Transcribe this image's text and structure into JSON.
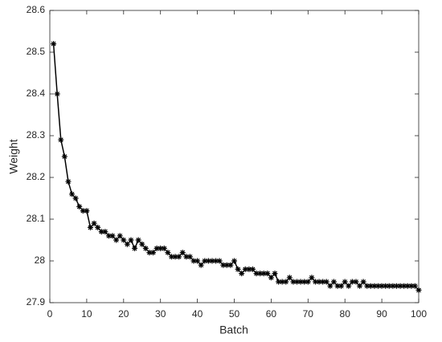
{
  "chart_data": {
    "type": "line",
    "x_label": "Batch",
    "y_label": "Weight",
    "x": [
      1,
      2,
      3,
      4,
      5,
      6,
      7,
      8,
      9,
      10,
      11,
      12,
      13,
      14,
      15,
      16,
      17,
      18,
      19,
      20,
      21,
      22,
      23,
      24,
      25,
      26,
      27,
      28,
      29,
      30,
      31,
      32,
      33,
      34,
      35,
      36,
      37,
      38,
      39,
      40,
      41,
      42,
      43,
      44,
      45,
      46,
      47,
      48,
      49,
      50,
      51,
      52,
      53,
      54,
      55,
      56,
      57,
      58,
      59,
      60,
      61,
      62,
      63,
      64,
      65,
      66,
      67,
      68,
      69,
      70,
      71,
      72,
      73,
      74,
      75,
      76,
      77,
      78,
      79,
      80,
      81,
      82,
      83,
      84,
      85,
      86,
      87,
      88,
      89,
      90,
      91,
      92,
      93,
      94,
      95,
      96,
      97,
      98,
      99,
      100
    ],
    "series": [
      {
        "color": "#000000",
        "values": [
          28.52,
          28.4,
          28.29,
          28.25,
          28.19,
          28.16,
          28.15,
          28.13,
          28.12,
          28.12,
          28.08,
          28.09,
          28.08,
          28.07,
          28.07,
          28.06,
          28.06,
          28.05,
          28.06,
          28.05,
          28.04,
          28.05,
          28.03,
          28.05,
          28.04,
          28.03,
          28.02,
          28.02,
          28.03,
          28.03,
          28.03,
          28.02,
          28.01,
          28.01,
          28.01,
          28.02,
          28.01,
          28.01,
          28.0,
          28.0,
          27.99,
          28.0,
          28.0,
          28.0,
          28.0,
          28.0,
          27.99,
          27.99,
          27.99,
          28.0,
          27.98,
          27.97,
          27.98,
          27.98,
          27.98,
          27.97,
          27.97,
          27.97,
          27.97,
          27.96,
          27.97,
          27.95,
          27.95,
          27.95,
          27.96,
          27.95,
          27.95,
          27.95,
          27.95,
          27.95,
          27.96,
          27.95,
          27.95,
          27.95,
          27.95,
          27.94,
          27.95,
          27.94,
          27.94,
          27.95,
          27.94,
          27.95,
          27.95,
          27.94,
          27.95,
          27.94,
          27.94,
          27.94,
          27.94,
          27.94,
          27.94,
          27.94,
          27.94,
          27.94,
          27.94,
          27.94,
          27.94,
          27.94,
          27.94,
          27.93
        ]
      }
    ],
    "xlim": [
      0,
      100
    ],
    "xticks": [
      0,
      10,
      20,
      30,
      40,
      50,
      60,
      70,
      80,
      90,
      100
    ],
    "ylim": [
      27.9,
      28.6
    ],
    "yticks": [
      27.9,
      28,
      28.1,
      28.2,
      28.3,
      28.4,
      28.5,
      28.6
    ],
    "grid": false
  }
}
